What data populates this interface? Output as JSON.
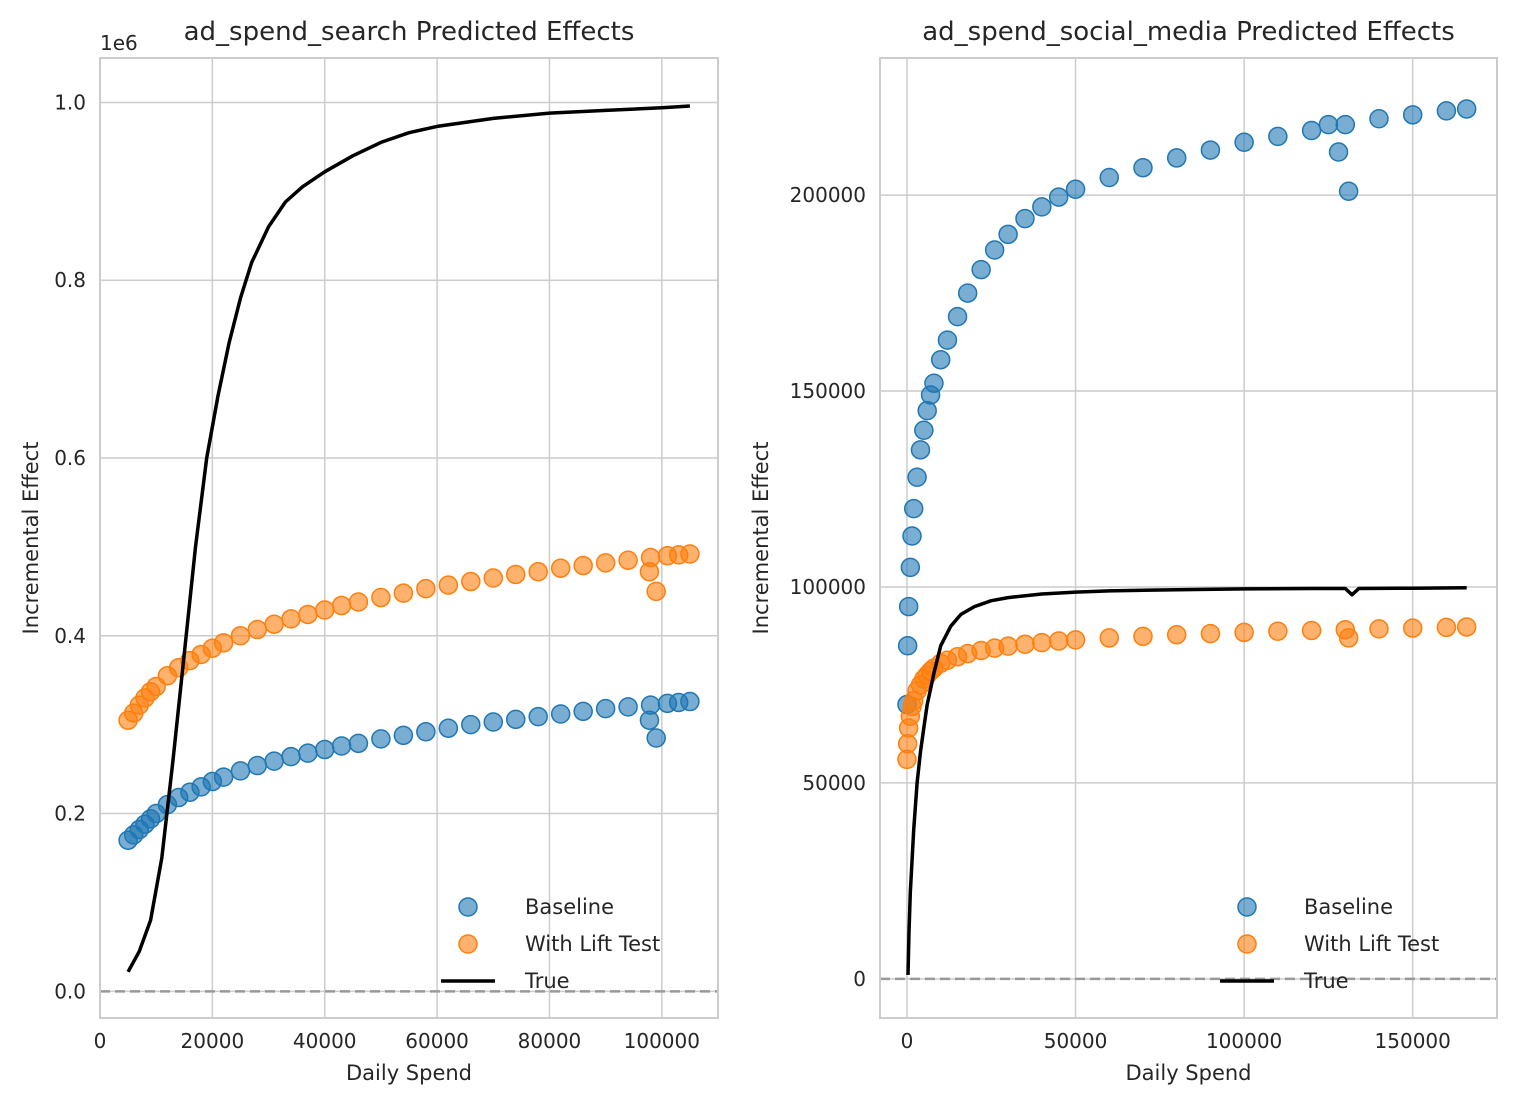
{
  "chart_data": [
    {
      "type": "scatter",
      "title": "ad_spend_search Predicted Effects",
      "xlabel": "Daily Spend",
      "ylabel": "Incremental Effect",
      "offset_text": "1e6",
      "xlim": [
        0,
        110000
      ],
      "ylim": [
        -0.03,
        1.05
      ],
      "x_ticks": [
        0,
        20000,
        40000,
        60000,
        80000,
        100000
      ],
      "x_tick_labels": [
        "0",
        "20000",
        "40000",
        "60000",
        "80000",
        "100000"
      ],
      "y_ticks": [
        0.0,
        0.2,
        0.4,
        0.6,
        0.8,
        1.0
      ],
      "y_tick_labels": [
        "0.0",
        "0.2",
        "0.4",
        "0.6",
        "0.8",
        "1.0"
      ],
      "y_scale_factor": 1000000,
      "grid": true,
      "reference_line": {
        "y": 0,
        "style": "dashed",
        "color": "#999999"
      },
      "legend": {
        "position": "lower-right",
        "entries": [
          "Baseline",
          "With Lift Test",
          "True"
        ]
      },
      "series": [
        {
          "name": "Baseline",
          "kind": "scatter",
          "color": "#1f77b4",
          "x": [
            5000,
            6000,
            7000,
            8000,
            9000,
            10000,
            12000,
            14000,
            16000,
            18000,
            20000,
            22000,
            25000,
            28000,
            31000,
            34000,
            37000,
            40000,
            43000,
            46000,
            50000,
            54000,
            58000,
            62000,
            66000,
            70000,
            74000,
            78000,
            82000,
            86000,
            90000,
            94000,
            98000,
            101000,
            103000,
            105000,
            97800,
            99000
          ],
          "y": [
            0.17,
            0.176,
            0.182,
            0.188,
            0.194,
            0.2,
            0.21,
            0.218,
            0.224,
            0.23,
            0.236,
            0.241,
            0.248,
            0.254,
            0.259,
            0.264,
            0.268,
            0.272,
            0.276,
            0.279,
            0.284,
            0.288,
            0.292,
            0.296,
            0.3,
            0.303,
            0.306,
            0.309,
            0.312,
            0.315,
            0.318,
            0.32,
            0.322,
            0.324,
            0.325,
            0.326,
            0.305,
            0.285
          ]
        },
        {
          "name": "With Lift Test",
          "kind": "scatter",
          "color": "#ff7f0e",
          "x": [
            5000,
            6000,
            7000,
            8000,
            9000,
            10000,
            12000,
            14000,
            16000,
            18000,
            20000,
            22000,
            25000,
            28000,
            31000,
            34000,
            37000,
            40000,
            43000,
            46000,
            50000,
            54000,
            58000,
            62000,
            66000,
            70000,
            74000,
            78000,
            82000,
            86000,
            90000,
            94000,
            98000,
            101000,
            103000,
            105000,
            97800,
            99000
          ],
          "y": [
            0.305,
            0.313,
            0.322,
            0.33,
            0.337,
            0.343,
            0.355,
            0.364,
            0.372,
            0.379,
            0.386,
            0.392,
            0.4,
            0.407,
            0.413,
            0.419,
            0.424,
            0.429,
            0.434,
            0.438,
            0.443,
            0.448,
            0.453,
            0.457,
            0.461,
            0.465,
            0.469,
            0.472,
            0.476,
            0.479,
            0.482,
            0.485,
            0.488,
            0.49,
            0.491,
            0.492,
            0.472,
            0.45
          ]
        },
        {
          "name": "True",
          "kind": "line",
          "color": "#000000",
          "x": [
            5000,
            7000,
            9000,
            11000,
            13000,
            15000,
            17000,
            19000,
            21000,
            23000,
            25000,
            27000,
            30000,
            33000,
            36000,
            40000,
            45000,
            50000,
            55000,
            60000,
            70000,
            80000,
            90000,
            100000,
            105000
          ],
          "y": [
            0.022,
            0.045,
            0.08,
            0.15,
            0.26,
            0.38,
            0.5,
            0.6,
            0.67,
            0.73,
            0.78,
            0.82,
            0.86,
            0.888,
            0.905,
            0.922,
            0.94,
            0.955,
            0.966,
            0.973,
            0.982,
            0.988,
            0.991,
            0.994,
            0.996
          ]
        }
      ]
    },
    {
      "type": "scatter",
      "title": "ad_spend_social_media Predicted Effects",
      "xlabel": "Daily Spend",
      "ylabel": "Incremental Effect",
      "xlim": [
        -8000,
        175000
      ],
      "ylim": [
        -10000,
        235000
      ],
      "x_ticks": [
        0,
        50000,
        100000,
        150000
      ],
      "x_tick_labels": [
        "0",
        "50000",
        "100000",
        "150000"
      ],
      "y_ticks": [
        0,
        50000,
        100000,
        150000,
        200000
      ],
      "y_tick_labels": [
        "0",
        "50000",
        "100000",
        "150000",
        "200000"
      ],
      "y_scale_factor": 1,
      "grid": true,
      "reference_line": {
        "y": 0,
        "style": "dashed",
        "color": "#999999"
      },
      "legend": {
        "position": "lower-right",
        "entries": [
          "Baseline",
          "With Lift Test",
          "True"
        ]
      },
      "series": [
        {
          "name": "Baseline",
          "kind": "scatter",
          "color": "#1f77b4",
          "x": [
            0,
            200,
            500,
            1000,
            1500,
            2000,
            3000,
            4000,
            5000,
            6000,
            7000,
            8000,
            10000,
            12000,
            15000,
            18000,
            22000,
            26000,
            30000,
            35000,
            40000,
            45000,
            50000,
            60000,
            70000,
            80000,
            90000,
            100000,
            110000,
            120000,
            130000,
            140000,
            150000,
            160000,
            166000,
            128000,
            131000,
            125000
          ],
          "y": [
            70000,
            85000,
            95000,
            105000,
            113000,
            120000,
            128000,
            135000,
            140000,
            145000,
            149000,
            152000,
            158000,
            163000,
            169000,
            175000,
            181000,
            186000,
            190000,
            194000,
            197000,
            199500,
            201500,
            204500,
            207000,
            209500,
            211500,
            213500,
            215000,
            216500,
            218000,
            219500,
            220500,
            221500,
            222000,
            211000,
            201000,
            218000
          ]
        },
        {
          "name": "With Lift Test",
          "kind": "scatter",
          "color": "#ff7f0e",
          "x": [
            0,
            200,
            500,
            1000,
            1500,
            2000,
            3000,
            4000,
            5000,
            6000,
            7000,
            8000,
            10000,
            12000,
            15000,
            18000,
            22000,
            26000,
            30000,
            35000,
            40000,
            45000,
            50000,
            60000,
            70000,
            80000,
            90000,
            100000,
            110000,
            120000,
            130000,
            140000,
            150000,
            160000,
            166000,
            131000
          ],
          "y": [
            56000,
            60000,
            64000,
            67000,
            69500,
            71000,
            73500,
            75000,
            76500,
            77500,
            78500,
            79300,
            80500,
            81300,
            82200,
            83000,
            83800,
            84400,
            84900,
            85400,
            85800,
            86200,
            86500,
            87000,
            87400,
            87800,
            88100,
            88400,
            88700,
            88900,
            89100,
            89300,
            89500,
            89700,
            89800,
            87000
          ]
        },
        {
          "name": "True",
          "kind": "line",
          "color": "#000000",
          "x": [
            300,
            600,
            1000,
            1500,
            2000,
            2500,
            3000,
            3500,
            4000,
            5000,
            6000,
            7000,
            8000,
            10000,
            13000,
            16000,
            20000,
            25000,
            30000,
            40000,
            50000,
            60000,
            80000,
            100000,
            120000,
            130000,
            132000,
            134000,
            150000,
            166000
          ],
          "y": [
            1000,
            12000,
            22000,
            30000,
            38000,
            44000,
            50000,
            54000,
            58000,
            64000,
            70000,
            74000,
            78000,
            85000,
            90000,
            93000,
            95000,
            96500,
            97300,
            98200,
            98700,
            99000,
            99300,
            99500,
            99600,
            99600,
            98000,
            99600,
            99700,
            99800
          ]
        }
      ]
    }
  ]
}
